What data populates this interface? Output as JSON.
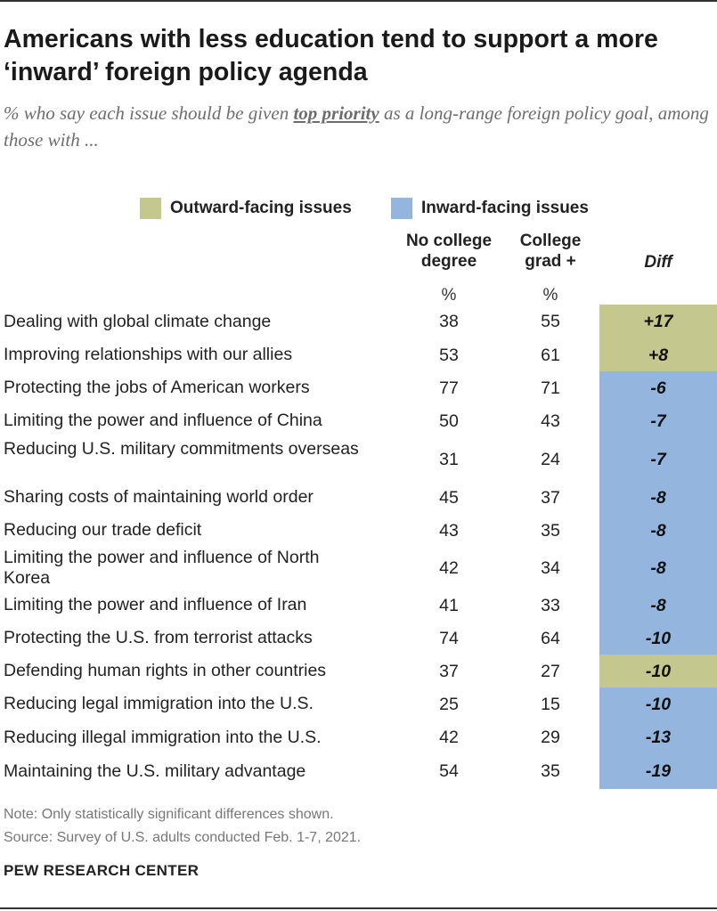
{
  "title": "Americans with less education tend to support a more ‘inward’ foreign policy agenda",
  "subtitle": {
    "before": "% who say each issue should be given ",
    "emphasis": "top priority",
    "after": " as a long-range foreign policy goal, among those with ..."
  },
  "colors": {
    "outward": "#c5c88e",
    "inward": "#93b5de"
  },
  "chart_data": {
    "type": "table",
    "legend": [
      {
        "name": "Outward-facing issues",
        "color": "#c5c88e"
      },
      {
        "name": "Inward-facing issues",
        "color": "#93b5de"
      }
    ],
    "columns": [
      {
        "label_line1": "No college",
        "label_line2": "degree",
        "unit": "%"
      },
      {
        "label_line1": "College",
        "label_line2": "grad +",
        "unit": "%"
      },
      {
        "label": "Diff"
      }
    ],
    "rows": [
      {
        "issue": "Dealing with global climate change",
        "no_college": 38,
        "college": 55,
        "diff": "+17",
        "category": "outward"
      },
      {
        "issue": "Improving relationships with our allies",
        "no_college": 53,
        "college": 61,
        "diff": "+8",
        "category": "outward"
      },
      {
        "issue": "Protecting the jobs of American workers",
        "no_college": 77,
        "college": 71,
        "diff": "-6",
        "category": "inward"
      },
      {
        "issue": "Limiting the power and influence of China",
        "no_college": 50,
        "college": 43,
        "diff": "-7",
        "category": "inward"
      },
      {
        "issue": "Reducing U.S. military commitments overseas",
        "no_college": 31,
        "college": 24,
        "diff": "-7",
        "category": "inward"
      },
      {
        "issue": "Sharing costs of maintaining world order",
        "no_college": 45,
        "college": 37,
        "diff": "-8",
        "category": "inward"
      },
      {
        "issue": "Reducing our trade deficit",
        "no_college": 43,
        "college": 35,
        "diff": "-8",
        "category": "inward"
      },
      {
        "issue": "Limiting the power and influence of North Korea",
        "no_college": 42,
        "college": 34,
        "diff": "-8",
        "category": "inward"
      },
      {
        "issue": "Limiting the power and influence of Iran",
        "no_college": 41,
        "college": 33,
        "diff": "-8",
        "category": "inward"
      },
      {
        "issue": "Protecting the U.S. from terrorist attacks",
        "no_college": 74,
        "college": 64,
        "diff": "-10",
        "category": "inward"
      },
      {
        "issue": "Defending human rights in other countries",
        "no_college": 37,
        "college": 27,
        "diff": "-10",
        "category": "outward"
      },
      {
        "issue": "Reducing legal immigration into the U.S.",
        "no_college": 25,
        "college": 15,
        "diff": "-10",
        "category": "inward"
      },
      {
        "issue": "Reducing illegal immigration into the U.S.",
        "no_college": 42,
        "college": 29,
        "diff": "-13",
        "category": "inward"
      },
      {
        "issue": "Maintaining the U.S. military advantage",
        "no_college": 54,
        "college": 35,
        "diff": "-19",
        "category": "inward"
      }
    ]
  },
  "note": "Note: Only statistically significant differences shown.",
  "source": "Source: Survey of U.S. adults conducted Feb. 1-7, 2021.",
  "org": "PEW RESEARCH CENTER"
}
